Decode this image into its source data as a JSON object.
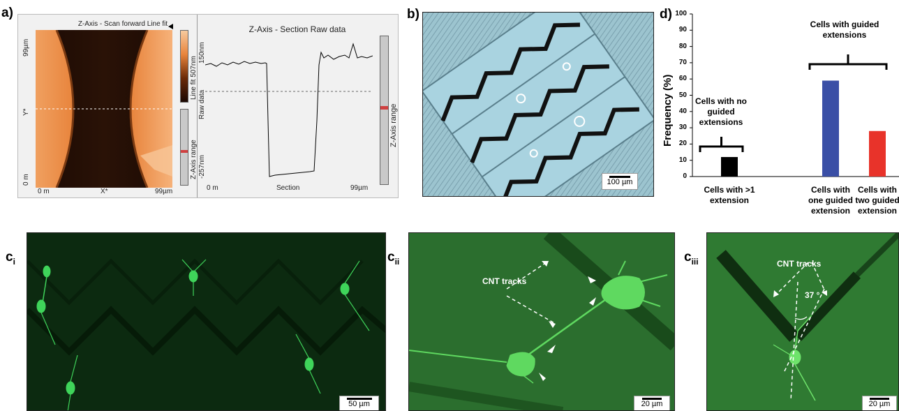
{
  "panel_labels": {
    "a": "a)",
    "b": "b)",
    "d": "d)",
    "ci_main": "c",
    "ci_sub": "i",
    "cii_main": "c",
    "cii_sub": "ii",
    "ciii_main": "c",
    "ciii_sub": "iii"
  },
  "afm": {
    "map_title": "Z-Axis - Scan forward   Line fit",
    "y_top": "99µm",
    "y_mid": "Y*",
    "y_bottom": "0 m",
    "x_left": "0 m",
    "x_mid": "X*",
    "x_right": "99µm",
    "colorbar_label": "Line fit 507nm",
    "range_label": "Z-Axis range",
    "section_title": "Z-Axis - Section   Raw data",
    "section_y_top": "150nm",
    "section_y_label": "Raw data",
    "section_y_bottom": "-257nm",
    "section_x_left": "0 m",
    "section_x_mid": "Section",
    "section_x_right": "99µm",
    "section_range_label": "Z-Axis range"
  },
  "panel_b": {
    "scalebar": "100 µm"
  },
  "chart_data": {
    "type": "bar",
    "ylabel": "Frequency (%)",
    "ylim": [
      0,
      100
    ],
    "yticks": [
      "0",
      "10",
      "20",
      "30",
      "40",
      "50",
      "60",
      "70",
      "80",
      "90",
      "100"
    ],
    "categories": [
      "Cells with >1 extension",
      "Cells with one guided extension",
      "Cells with two guided extension"
    ],
    "category_lines": [
      [
        "Cells with >1",
        "extension"
      ],
      [
        "Cells with",
        "one guided",
        "extension"
      ],
      [
        "Cells with",
        "two guided",
        "extension"
      ]
    ],
    "values": [
      12,
      59,
      28
    ],
    "colors": [
      "#000000",
      "#3a4fa6",
      "#e8332a"
    ],
    "annotations": {
      "no_guided": [
        "Cells with no",
        "guided",
        "extensions"
      ],
      "guided": [
        "Cells with guided",
        "extensions"
      ]
    }
  },
  "panel_ci": {
    "scalebar": "50 µm"
  },
  "panel_cii": {
    "label": "CNT tracks",
    "scalebar": "20 µm"
  },
  "panel_ciii": {
    "label": "CNT tracks",
    "angle": "37 °",
    "scalebar": "20 µm"
  }
}
